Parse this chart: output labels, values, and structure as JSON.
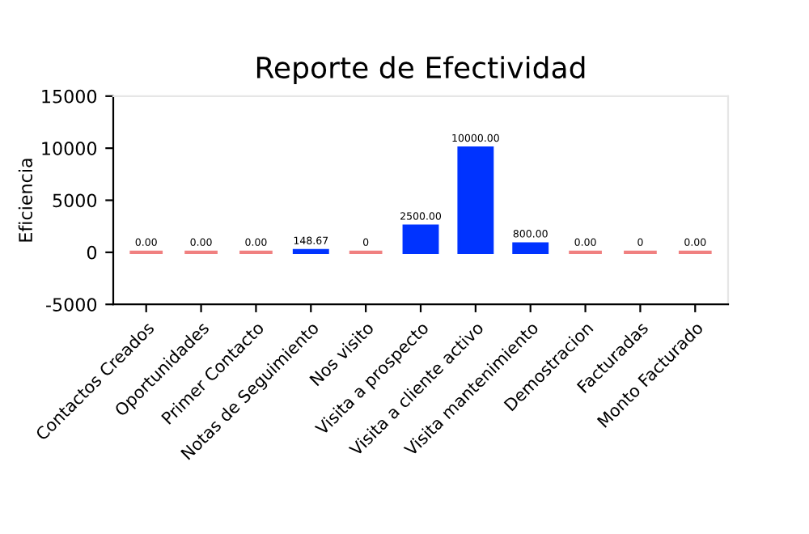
{
  "chart_data": {
    "type": "bar",
    "title": "Reporte de Efectividad",
    "ylabel": "Eficiencia",
    "categories": [
      "Contactos Creados",
      "Oportunidades",
      "Primer Contacto",
      "Notas de Seguimiento",
      "Nos visito",
      "Visita a prospecto",
      "Visita a cliente activo",
      "Visita mantenimiento",
      "Demostracion",
      "Facturadas",
      "Monto Facturado"
    ],
    "values": [
      0,
      0,
      0,
      148.67,
      0,
      2500,
      10000,
      800,
      0,
      0,
      0
    ],
    "value_labels": [
      "0.00",
      "0.00",
      "0.00",
      "148.67",
      "0",
      "2500.00",
      "10000.00",
      "800.00",
      "0.00",
      "0",
      "0.00"
    ],
    "colors": [
      "#f08080",
      "#f08080",
      "#f08080",
      "#0033ff",
      "#f08080",
      "#0033ff",
      "#0033ff",
      "#0033ff",
      "#f08080",
      "#f08080",
      "#f08080"
    ],
    "ylim": [
      -5000,
      15000
    ],
    "yticks": [
      -5000,
      0,
      5000,
      10000,
      15000
    ],
    "grid": false,
    "legend": false
  }
}
